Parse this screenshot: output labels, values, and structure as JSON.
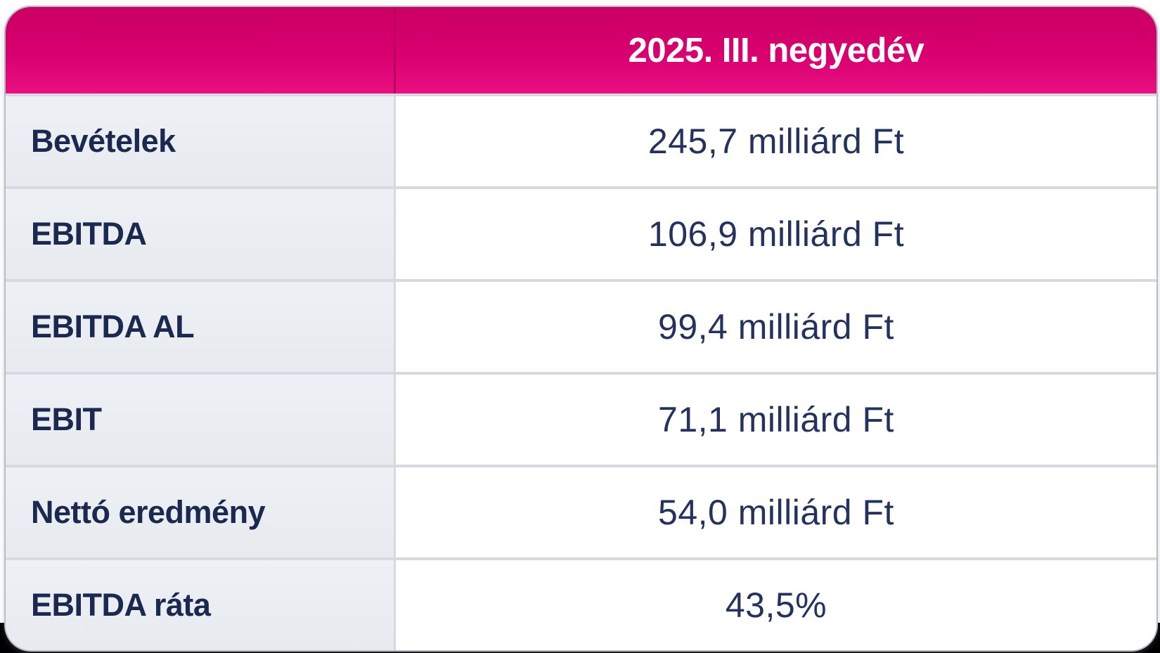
{
  "table": {
    "header": {
      "corner_label": "",
      "period_label": "2025. III. negyedév"
    },
    "rows": [
      {
        "label": "Bevételek",
        "value": "245,7 milliárd Ft"
      },
      {
        "label": "EBITDA",
        "value": "106,9 milliárd Ft"
      },
      {
        "label": "EBITDA AL",
        "value": "99,4 milliárd Ft"
      },
      {
        "label": "EBIT",
        "value": "71,1 milliárd Ft"
      },
      {
        "label": "Nettó eredmény",
        "value": "54,0 milliárd Ft"
      },
      {
        "label": "EBITDA ráta",
        "value": "43,5%"
      }
    ],
    "colors": {
      "header_magenta_top": "#ca0063",
      "header_magenta_bottom": "#ea0f82",
      "header_text": "#ffffff",
      "label_column_background": "#e9edf1",
      "value_column_background": "#ffffff",
      "text_navy": "#1b2951",
      "divider": "#d6dae0",
      "page_bottom_strip": "#000000"
    }
  },
  "chart_data": {
    "type": "table",
    "title": "2025. III. negyedév",
    "columns": [
      "",
      "2025. III. negyedév"
    ],
    "rows": [
      [
        "Bevételek",
        "245,7 milliárd Ft"
      ],
      [
        "EBITDA",
        "106,9 milliárd Ft"
      ],
      [
        "EBITDA AL",
        "99,4 milliárd Ft"
      ],
      [
        "EBIT",
        "71,1 milliárd Ft"
      ],
      [
        "Nettó eredmény",
        "54,0 milliárd Ft"
      ],
      [
        "EBITDA ráta",
        "43,5%"
      ]
    ],
    "values_numeric": {
      "bevetelek_mrd_ft": 245.7,
      "ebitda_mrd_ft": 106.9,
      "ebitda_al_mrd_ft": 99.4,
      "ebit_mrd_ft": 71.1,
      "netto_eredmeny_mrd_ft": 54.0,
      "ebitda_rata_pct": 43.5
    },
    "unit": "milliárd Ft"
  }
}
